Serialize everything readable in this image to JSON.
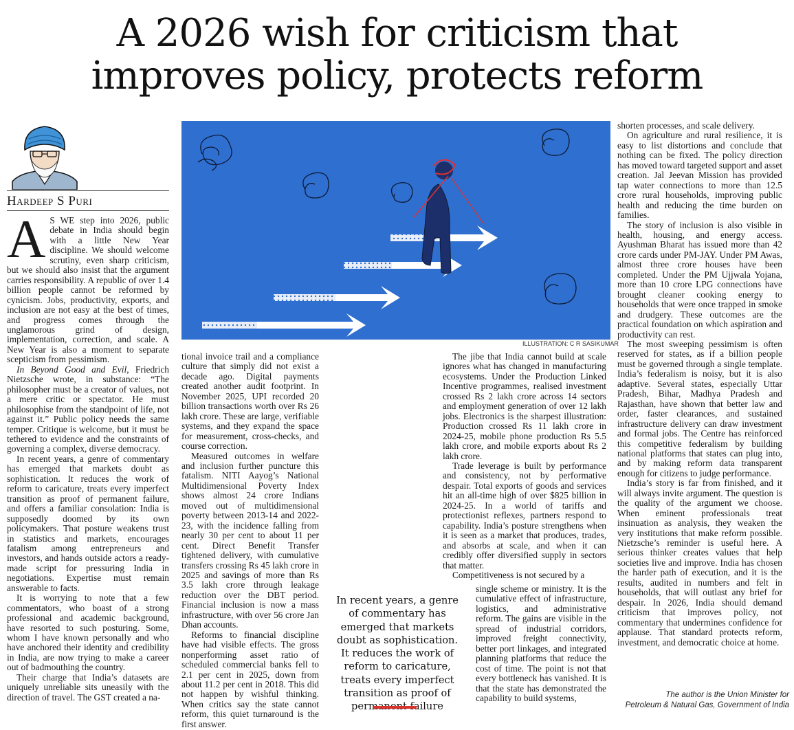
{
  "headline": {
    "line1": "A 2026 wish for criticism that",
    "line2": "improves policy, protects reform"
  },
  "author": {
    "name": "Hardeep S Puri"
  },
  "illustration": {
    "credit": "ILLUSTRATION: C R SASIKUMAR"
  },
  "pull_quote": "In recent years, a genre of commentary has emerged that markets doubt as sophistication. It reduces the work of reform to caricature, treats every imperfect transition as proof of permanent failure",
  "tagline": {
    "line1": "The author is the Union Minister for",
    "line2": "Petroleum & Natural Gas, Government of India"
  },
  "article": {
    "col1": {
      "dropcap": "A",
      "p1_rest": "S WE step into 2026, public debate in India should begin with a little New Year discipline. We should welcome scrutiny, even sharp criticism, but we should also insist that the argument carries responsibility. A republic of over 1.4 billion people cannot be reformed by cynicism. Jobs, productivity, exports, and inclusion are not easy at the best of times, and progress comes through the unglamorous grind of design, implementation, correction, and scale. A New Year is also a moment to separate scepticism from pessimism.",
      "p2_title": "In Beyond Good and Evil",
      "p2_rest": ", Friedrich Nietzsche wrote, in substance: “The philosopher must be a creator of values, not a mere critic or spectator. He must philosophise from the standpoint of life, not against it.” Public policy needs the same temper. Critique is welcome, but it must be tethered to evidence and the constraints of governing a complex, diverse democracy.",
      "p3": "In recent years, a genre of commentary has emerged that markets doubt as sophistication. It reduces the work of reform to caricature, treats every imperfect transition as proof of permanent failure, and offers a familiar consolation: India is supposedly doomed by its own policymakers. That posture weakens trust in statistics and markets, encourages fatalism among entrepreneurs and investors, and hands outside actors a ready-made script for pressuring India in negotiations. Expertise must remain answerable to facts.",
      "p4": "It is worrying to note that a few commentators, who boast of a strong professional and academic background, have resorted to such posturing. Some, whom I have known personally and who have anchored their identity and credibility in India, are now trying to make a career out of badmouthing the country.",
      "p5": "Their charge that India’s datasets are uniquely unreliable sits uneasily with the direction of travel. The GST created a na-"
    },
    "col2": {
      "p1": "tional invoice trail and a compliance culture that simply did not exist a decade ago. Digital payments created another audit footprint. In November 2025, UPI recorded 20 billion transactions worth over Rs 26 lakh crore. These are large, verifiable systems, and they expand the space for measurement, cross-checks, and course correction.",
      "p2": "Measured outcomes in welfare and inclusion further puncture this fatalism. NITI Aayog’s National Multidimensional Poverty Index shows almost 24 crore Indians moved out of multidimensional poverty between 2013-14 and 2022-23, with the incidence falling from nearly 30 per cent to about 11 per cent. Direct Benefit Transfer tightened delivery, with cumulative transfers crossing Rs 45 lakh crore in 2025 and savings of more than Rs 3.5 lakh crore through leakage reduction over the DBT period. Financial inclusion is now a mass infrastructure, with over 56 crore Jan Dhan accounts.",
      "p3": "Reforms to financial discipline have had visible effects. The gross nonperforming asset ratio of scheduled commercial banks fell to 2.1 per cent in 2025, down from about 11.2 per cent in 2018. This did not happen by wishful thinking. When critics say the state cannot reform, this quiet turnaround is the first answer."
    },
    "col3": {
      "p1": "The jibe that India cannot build at scale ignores what has changed in manufacturing ecosystems. Under the Production Linked Incentive programmes, realised investment crossed Rs 2 lakh crore across 14 sectors and employment generation of over 12 lakh jobs. Electronics is the sharpest illustration: Production crossed Rs 11 lakh crore in 2024-25, mobile phone production Rs 5.5 lakh crore, and mobile exports about Rs 2 lakh crore.",
      "p2": "Trade leverage is built by performance and consistency, not by performative despair. Total exports of goods and services hit an all-time high of over $825 billion in 2024-25. In a world of tariffs and protectionist reflexes, partners respond to capability. India’s posture strengthens when it is seen as a market that produces, trades, and absorbs at scale, and when it can credibly offer diversified supply in sectors that matter.",
      "p3a": "Competitiveness is not secured by a",
      "p3b": "single scheme or ministry. It is the cumulative effect of infrastructure, logistics, and administrative reform. The gains are visible in the spread of industrial corridors, improved freight connectivity, better port linkages, and integrated planning platforms that reduce the cost of time. The point is not that every bottleneck has vanished. It is that the state has demonstrated the capability to build systems,"
    },
    "col4": {
      "p1": "shorten processes, and scale delivery.",
      "p2": "On agriculture and rural resilience, it is easy to list distortions and conclude that nothing can be fixed. The policy direction has moved toward targeted support and asset creation. Jal Jeevan Mission has provided tap water connections to more than 12.5 crore rural households, improving public health and reducing the time burden on families.",
      "p3": "The story of inclusion is also visible in health, housing, and energy access. Ayushman Bharat has issued more than 42 crore cards under PM-JAY. Under PM Awas, almost three crore houses have been completed. Under the PM Ujjwala Yojana, more than 10 crore LPG connections have brought cleaner cooking energy to households that were once trapped in smoke and drudgery. These outcomes are the practical foundation on which aspiration and productivity can rest.",
      "p4": "The most sweeping pessimism is often reserved for states, as if a billion people must be governed through a single template. India’s federalism is noisy, but it is also adaptive. Several states, especially Uttar Pradesh, Bihar, Madhya Pradesh and Rajasthan, have shown that better law and order, faster clearances, and sustained infrastructure delivery can draw investment and formal jobs. The Centre has reinforced this competitive federalism by building national platforms that states can plug into, and by making reform data transparent enough for citizens to judge performance.",
      "p5": "India’s story is far from finished, and it will always invite argument. The question is the quality of the argument we choose. When eminent professionals treat insinuation as analysis, they weaken the very institutions that make reform possible. Nietzsche’s reminder is useful here. A serious thinker creates values that help societies live and improve. India has chosen the harder path of execution, and it is the results, audited in numbers and felt in households, that will outlast any brief for despair. In 2026, India should demand criticism that improves policy, not commentary that undermines confidence for applause. That standard protects reform, investment, and democratic choice at home."
    }
  }
}
